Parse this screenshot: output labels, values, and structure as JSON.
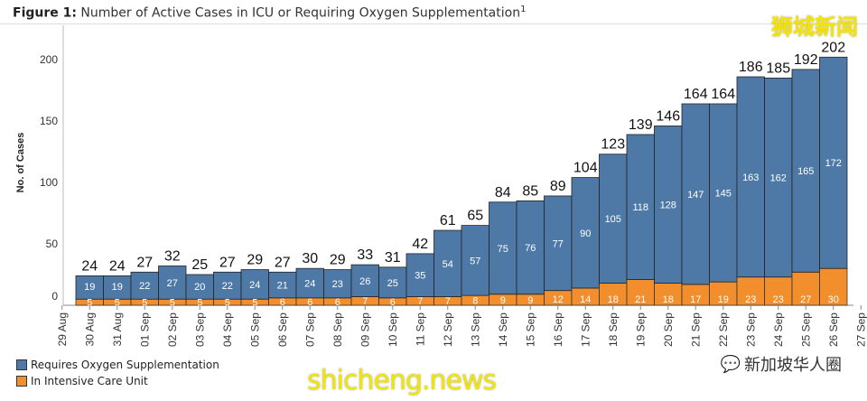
{
  "chart_data": {
    "type": "bar",
    "stacked": true,
    "title_prefix": "Figure 1:",
    "title": "Number of Active Cases in ICU or Requiring Oxygen Supplementation",
    "title_footnote": "1",
    "ylabel": "No. of Cases",
    "xlabel": "",
    "ylim": [
      0,
      220
    ],
    "yticks": [
      0,
      50,
      100,
      150,
      200
    ],
    "grid": false,
    "legend_position": "bottom-left",
    "x_tick_labels": [
      "29 Aug",
      "30 Aug",
      "31 Aug",
      "01 Sep",
      "02 Sep",
      "03 Sep",
      "04 Sep",
      "05 Sep",
      "06 Sep",
      "07 Sep",
      "08 Sep",
      "09 Sep",
      "10 Sep",
      "11 Sep",
      "12 Sep",
      "13 Sep",
      "14 Sep",
      "15 Sep",
      "16 Sep",
      "17 Sep",
      "18 Sep",
      "19 Sep",
      "20 Sep",
      "21 Sep",
      "22 Sep",
      "23 Sep",
      "24 Sep",
      "25 Sep",
      "26 Sep",
      "27 Sep"
    ],
    "categories": [
      "30 Aug",
      "31 Aug",
      "01 Sep",
      "02 Sep",
      "03 Sep",
      "04 Sep",
      "05 Sep",
      "06 Sep",
      "07 Sep",
      "08 Sep",
      "09 Sep",
      "10 Sep",
      "11 Sep",
      "12 Sep",
      "13 Sep",
      "14 Sep",
      "15 Sep",
      "16 Sep",
      "17 Sep",
      "18 Sep",
      "19 Sep",
      "20 Sep",
      "21 Sep",
      "22 Sep",
      "23 Sep",
      "24 Sep",
      "25 Sep",
      "26 Sep"
    ],
    "series": [
      {
        "name": "In Intensive Care Unit",
        "color": "#f28e2b",
        "values": [
          5,
          5,
          5,
          5,
          5,
          5,
          5,
          6,
          6,
          6,
          7,
          6,
          7,
          7,
          8,
          9,
          9,
          12,
          14,
          18,
          21,
          18,
          17,
          19,
          23,
          23,
          27,
          30
        ]
      },
      {
        "name": "Requires Oxygen Supplementation",
        "color": "#4e79a7",
        "values": [
          19,
          19,
          22,
          27,
          20,
          22,
          24,
          21,
          24,
          23,
          26,
          25,
          35,
          54,
          57,
          75,
          76,
          77,
          90,
          105,
          118,
          128,
          147,
          145,
          163,
          162,
          165,
          172
        ]
      }
    ],
    "totals": [
      24,
      24,
      27,
      32,
      25,
      27,
      29,
      27,
      30,
      29,
      33,
      31,
      42,
      61,
      65,
      84,
      85,
      89,
      104,
      123,
      139,
      146,
      164,
      164,
      186,
      185,
      192,
      202
    ]
  },
  "watermarks": {
    "top_right": "狮城新闻",
    "bottom_left": "shicheng.news",
    "bottom_right": "新加坡华人圈"
  }
}
